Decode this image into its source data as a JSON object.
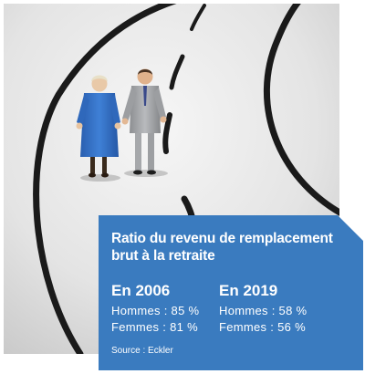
{
  "photo": {
    "subject": "figurines-elderly-couple-on-road"
  },
  "infobox": {
    "title": "Ratio du revenu de remplacement brut à la retraite",
    "background_color": "#3a7bbf",
    "columns": [
      {
        "year": "En 2006",
        "men": "Hommes : 85 %",
        "women": "Femmes : 81 %"
      },
      {
        "year": "En 2019",
        "men": "Hommes : 58 %",
        "women": "Femmes : 56 %"
      }
    ],
    "source": "Source : Eckler"
  }
}
